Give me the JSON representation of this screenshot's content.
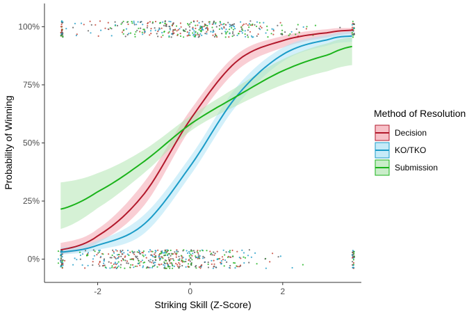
{
  "chart_data": {
    "type": "line",
    "xlabel": "Striking Skill (Z-Score)",
    "ylabel": "Probability of Winning",
    "xlim": [
      -3.15,
      3.7
    ],
    "ylim": [
      -0.1,
      1.1
    ],
    "x_ticks": [
      -2,
      0,
      2
    ],
    "x_tick_labels": [
      "-2",
      "0",
      "2"
    ],
    "y_ticks": [
      0,
      0.25,
      0.5,
      0.75,
      1.0
    ],
    "y_tick_labels": [
      "0%",
      "25%",
      "50%",
      "75%",
      "100%"
    ],
    "grid": false,
    "legend": {
      "title": "Method of Resolution",
      "position": "right"
    },
    "series": [
      {
        "name": "Decision",
        "color": "#b2182b",
        "fill": "#f4a6b0",
        "x": [
          -2.8,
          -2.0,
          -1.0,
          0.0,
          1.0,
          2.0,
          3.0,
          3.5
        ],
        "y": [
          0.04,
          0.1,
          0.28,
          0.6,
          0.85,
          0.94,
          0.975,
          0.985
        ],
        "ci_low": [
          0.02,
          0.07,
          0.23,
          0.56,
          0.81,
          0.91,
          0.955,
          0.97
        ],
        "ci_high": [
          0.07,
          0.13,
          0.33,
          0.64,
          0.88,
          0.96,
          0.99,
          0.995
        ]
      },
      {
        "name": "KO/TKO",
        "color": "#1a9bc7",
        "fill": "#aee3f5",
        "x": [
          -2.8,
          -2.0,
          -1.0,
          0.0,
          1.0,
          2.0,
          3.0,
          3.5
        ],
        "y": [
          0.03,
          0.06,
          0.15,
          0.4,
          0.7,
          0.88,
          0.945,
          0.96
        ],
        "ci_low": [
          0.02,
          0.04,
          0.11,
          0.36,
          0.66,
          0.85,
          0.92,
          0.935
        ],
        "ci_high": [
          0.05,
          0.08,
          0.19,
          0.44,
          0.74,
          0.91,
          0.965,
          0.98
        ]
      },
      {
        "name": "Submission",
        "color": "#1ab31a",
        "fill": "#b3e6b3",
        "x": [
          -2.8,
          -2.0,
          -1.0,
          0.0,
          1.0,
          2.0,
          3.0,
          3.5
        ],
        "y": [
          0.215,
          0.29,
          0.42,
          0.58,
          0.7,
          0.81,
          0.88,
          0.915
        ],
        "ci_low": [
          0.13,
          0.22,
          0.37,
          0.55,
          0.66,
          0.75,
          0.81,
          0.835
        ],
        "ci_high": [
          0.33,
          0.37,
          0.47,
          0.615,
          0.74,
          0.86,
          0.93,
          0.955
        ]
      }
    ],
    "jitter_points": {
      "groups": [
        {
          "outcome": 1,
          "center": 0.99,
          "spread": 0.035,
          "x_center": 0.0,
          "x_spread": 1.1,
          "count": 420
        },
        {
          "outcome": 0,
          "center": 0.0,
          "spread": 0.04,
          "x_center": -0.5,
          "x_spread": 1.0,
          "count": 520
        }
      ],
      "colors": [
        "#c0392b",
        "#1a9bc7",
        "#1ab31a",
        "#555555"
      ]
    }
  }
}
